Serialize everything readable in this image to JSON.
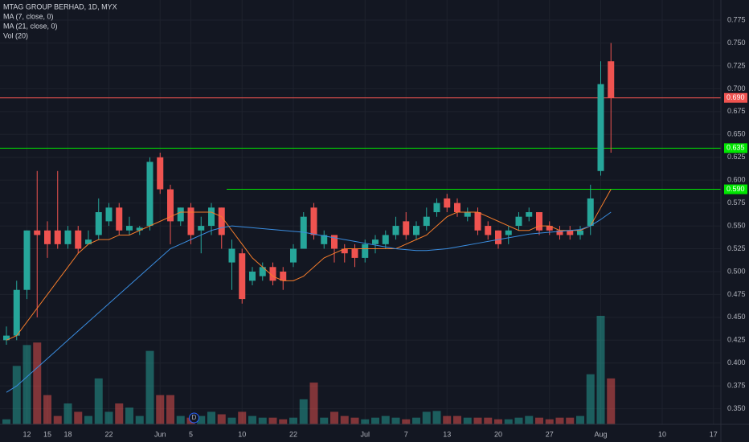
{
  "chart_data": {
    "type": "candlestick",
    "title": "MTAG GROUP BERHAD, 1D, MYX",
    "indicators": [
      "MA (7, close, 0)",
      "MA (21, close, 0)",
      "Vol (20)"
    ],
    "categories": [
      null,
      null,
      "12",
      null,
      "15",
      null,
      "18",
      null,
      null,
      null,
      "22",
      null,
      null,
      null,
      null,
      "Jun",
      null,
      null,
      "5",
      null,
      null,
      null,
      null,
      "10",
      null,
      null,
      null,
      null,
      "22",
      null,
      null,
      null,
      null,
      null,
      null,
      "Jul",
      null,
      null,
      null,
      "7",
      null,
      null,
      null,
      "13",
      null,
      null,
      null,
      null,
      "20",
      null,
      null,
      null,
      null,
      "27",
      null,
      null,
      null,
      null,
      "Aug",
      null,
      null,
      null,
      null,
      null,
      "10",
      null,
      null,
      null,
      null,
      "17"
    ],
    "open": [
      0.425,
      0.43,
      0.48,
      0.545,
      0.545,
      0.545,
      0.53,
      0.545,
      0.53,
      0.54,
      0.555,
      0.57,
      0.545,
      0.545,
      0.55,
      0.625,
      0.59,
      0.555,
      0.57,
      0.545,
      0.55,
      0.57,
      0.51,
      0.52,
      0.49,
      0.495,
      0.505,
      0.5,
      0.51,
      0.525,
      0.57,
      0.53,
      0.54,
      0.525,
      0.525,
      0.515,
      0.53,
      0.53,
      0.54,
      0.555,
      0.54,
      0.55,
      0.565,
      0.58,
      0.575,
      0.56,
      0.565,
      0.55,
      0.545,
      0.54,
      0.55,
      0.56,
      0.565,
      0.55,
      0.545,
      0.545,
      0.54,
      0.55,
      0.61,
      0.73,
      null,
      null,
      null,
      null,
      null,
      null,
      null,
      null,
      null,
      null
    ],
    "high": [
      0.44,
      0.49,
      0.545,
      0.61,
      0.555,
      0.61,
      0.55,
      0.55,
      0.545,
      0.58,
      0.575,
      0.575,
      0.56,
      0.55,
      0.625,
      0.63,
      0.595,
      0.57,
      0.575,
      0.56,
      0.575,
      0.57,
      0.535,
      0.525,
      0.505,
      0.51,
      0.51,
      0.505,
      0.53,
      0.565,
      0.575,
      0.545,
      0.54,
      0.53,
      0.53,
      0.535,
      0.54,
      0.545,
      0.56,
      0.565,
      0.555,
      0.57,
      0.58,
      0.585,
      0.58,
      0.57,
      0.57,
      0.555,
      0.545,
      0.55,
      0.565,
      0.57,
      0.565,
      0.555,
      0.55,
      0.55,
      0.55,
      0.595,
      0.73,
      0.75,
      null,
      null,
      null,
      null,
      null,
      null,
      null,
      null,
      null,
      null
    ],
    "low": [
      0.42,
      0.425,
      0.47,
      0.45,
      0.515,
      0.525,
      0.525,
      0.52,
      0.53,
      0.535,
      0.55,
      0.54,
      0.54,
      0.54,
      0.545,
      0.585,
      0.53,
      0.55,
      0.53,
      0.52,
      0.54,
      0.525,
      0.48,
      0.465,
      0.485,
      0.49,
      0.485,
      0.48,
      0.505,
      0.525,
      0.535,
      0.525,
      0.51,
      0.51,
      0.505,
      0.51,
      0.52,
      0.525,
      0.535,
      0.535,
      0.535,
      0.545,
      0.56,
      0.565,
      0.56,
      0.555,
      0.54,
      0.535,
      0.525,
      0.53,
      0.545,
      0.555,
      0.54,
      0.54,
      0.535,
      0.535,
      0.535,
      0.54,
      0.605,
      0.63,
      null,
      null,
      null,
      null,
      null,
      null,
      null,
      null,
      null,
      null
    ],
    "close": [
      0.43,
      0.48,
      0.545,
      0.54,
      0.53,
      0.53,
      0.545,
      0.525,
      0.535,
      0.565,
      0.57,
      0.545,
      0.55,
      0.548,
      0.62,
      0.59,
      0.555,
      0.57,
      0.54,
      0.55,
      0.57,
      0.54,
      0.525,
      0.47,
      0.5,
      0.505,
      0.49,
      0.49,
      0.525,
      0.56,
      0.54,
      0.54,
      0.525,
      0.52,
      0.515,
      0.53,
      0.535,
      0.54,
      0.55,
      0.54,
      0.55,
      0.56,
      0.575,
      0.57,
      0.565,
      0.565,
      0.545,
      0.54,
      0.53,
      0.545,
      0.56,
      0.565,
      0.545,
      0.545,
      0.54,
      0.54,
      0.545,
      0.58,
      0.705,
      0.69,
      null,
      null,
      null,
      null,
      null,
      null,
      null,
      null,
      null,
      null
    ],
    "volume": [
      6,
      70,
      95,
      98,
      35,
      10,
      25,
      15,
      10,
      55,
      15,
      25,
      20,
      10,
      88,
      35,
      35,
      10,
      8,
      10,
      15,
      12,
      8,
      15,
      10,
      8,
      8,
      6,
      8,
      30,
      50,
      8,
      15,
      10,
      8,
      6,
      8,
      10,
      8,
      6,
      8,
      15,
      16,
      10,
      10,
      8,
      8,
      8,
      6,
      6,
      8,
      10,
      8,
      6,
      8,
      8,
      10,
      60,
      130,
      55,
      null,
      null,
      null,
      null,
      null,
      null,
      null,
      null,
      null,
      null
    ],
    "series": [
      {
        "name": "MA (7, close, 0)",
        "color": "#f57c2b",
        "values": [
          0.425,
          0.43,
          0.445,
          0.46,
          0.475,
          0.49,
          0.505,
          0.52,
          0.53,
          0.535,
          0.535,
          0.54,
          0.54,
          0.545,
          0.55,
          0.555,
          0.56,
          0.565,
          0.565,
          0.565,
          0.565,
          0.56,
          0.545,
          0.53,
          0.515,
          0.505,
          0.495,
          0.49,
          0.49,
          0.495,
          0.505,
          0.515,
          0.52,
          0.525,
          0.525,
          0.525,
          0.525,
          0.525,
          0.525,
          0.53,
          0.535,
          0.54,
          0.55,
          0.56,
          0.565,
          0.565,
          0.565,
          0.56,
          0.555,
          0.55,
          0.545,
          0.545,
          0.55,
          0.55,
          0.545,
          0.545,
          0.545,
          0.55,
          0.57,
          0.59,
          null,
          null,
          null,
          null,
          null,
          null,
          null,
          null,
          null,
          null
        ]
      },
      {
        "name": "MA (21, close, 0)",
        "color": "#3a8de0",
        "values": [
          0.368,
          0.375,
          0.385,
          0.395,
          0.405,
          0.415,
          0.425,
          0.435,
          0.445,
          0.455,
          0.465,
          0.475,
          0.485,
          0.495,
          0.505,
          0.515,
          0.525,
          0.53,
          0.535,
          0.54,
          0.545,
          0.548,
          0.55,
          0.549,
          0.548,
          0.547,
          0.546,
          0.545,
          0.544,
          0.543,
          0.541,
          0.539,
          0.537,
          0.535,
          0.533,
          0.531,
          0.529,
          0.527,
          0.525,
          0.524,
          0.523,
          0.523,
          0.524,
          0.525,
          0.527,
          0.529,
          0.531,
          0.533,
          0.535,
          0.537,
          0.539,
          0.541,
          0.542,
          0.543,
          0.544,
          0.545,
          0.546,
          0.55,
          0.557,
          0.565,
          null,
          null,
          null,
          null,
          null,
          null,
          null,
          null,
          null,
          null
        ]
      }
    ],
    "up_color": "#26a69a",
    "down_color": "#ef5350",
    "levels": [
      {
        "value": 0.69,
        "label": "0.690",
        "color": "#ef5350"
      },
      {
        "value": 0.635,
        "label": "0.635",
        "color": "#00e600"
      },
      {
        "value": 0.59,
        "label": "0.590",
        "color": "#00e600"
      }
    ],
    "event_label": "D",
    "ylim": [
      0.333,
      0.797
    ],
    "yticks": [
      {
        "value": 0.35,
        "label": "0.350"
      },
      {
        "value": 0.375,
        "label": "0.375"
      },
      {
        "value": 0.4,
        "label": "0.400"
      },
      {
        "value": 0.425,
        "label": "0.425"
      },
      {
        "value": 0.45,
        "label": "0.450"
      },
      {
        "value": 0.475,
        "label": "0.475"
      },
      {
        "value": 0.5,
        "label": "0.500"
      },
      {
        "value": 0.525,
        "label": "0.525"
      },
      {
        "value": 0.55,
        "label": "0.550"
      },
      {
        "value": 0.575,
        "label": "0.575"
      },
      {
        "value": 0.6,
        "label": "0.600"
      },
      {
        "value": 0.625,
        "label": "0.625"
      },
      {
        "value": 0.65,
        "label": "0.650"
      },
      {
        "value": 0.675,
        "label": "0.675"
      },
      {
        "value": 0.7,
        "label": "0.700"
      },
      {
        "value": 0.725,
        "label": "0.725"
      },
      {
        "value": 0.75,
        "label": "0.750"
      },
      {
        "value": 0.775,
        "label": "0.775"
      }
    ],
    "grid": true
  }
}
